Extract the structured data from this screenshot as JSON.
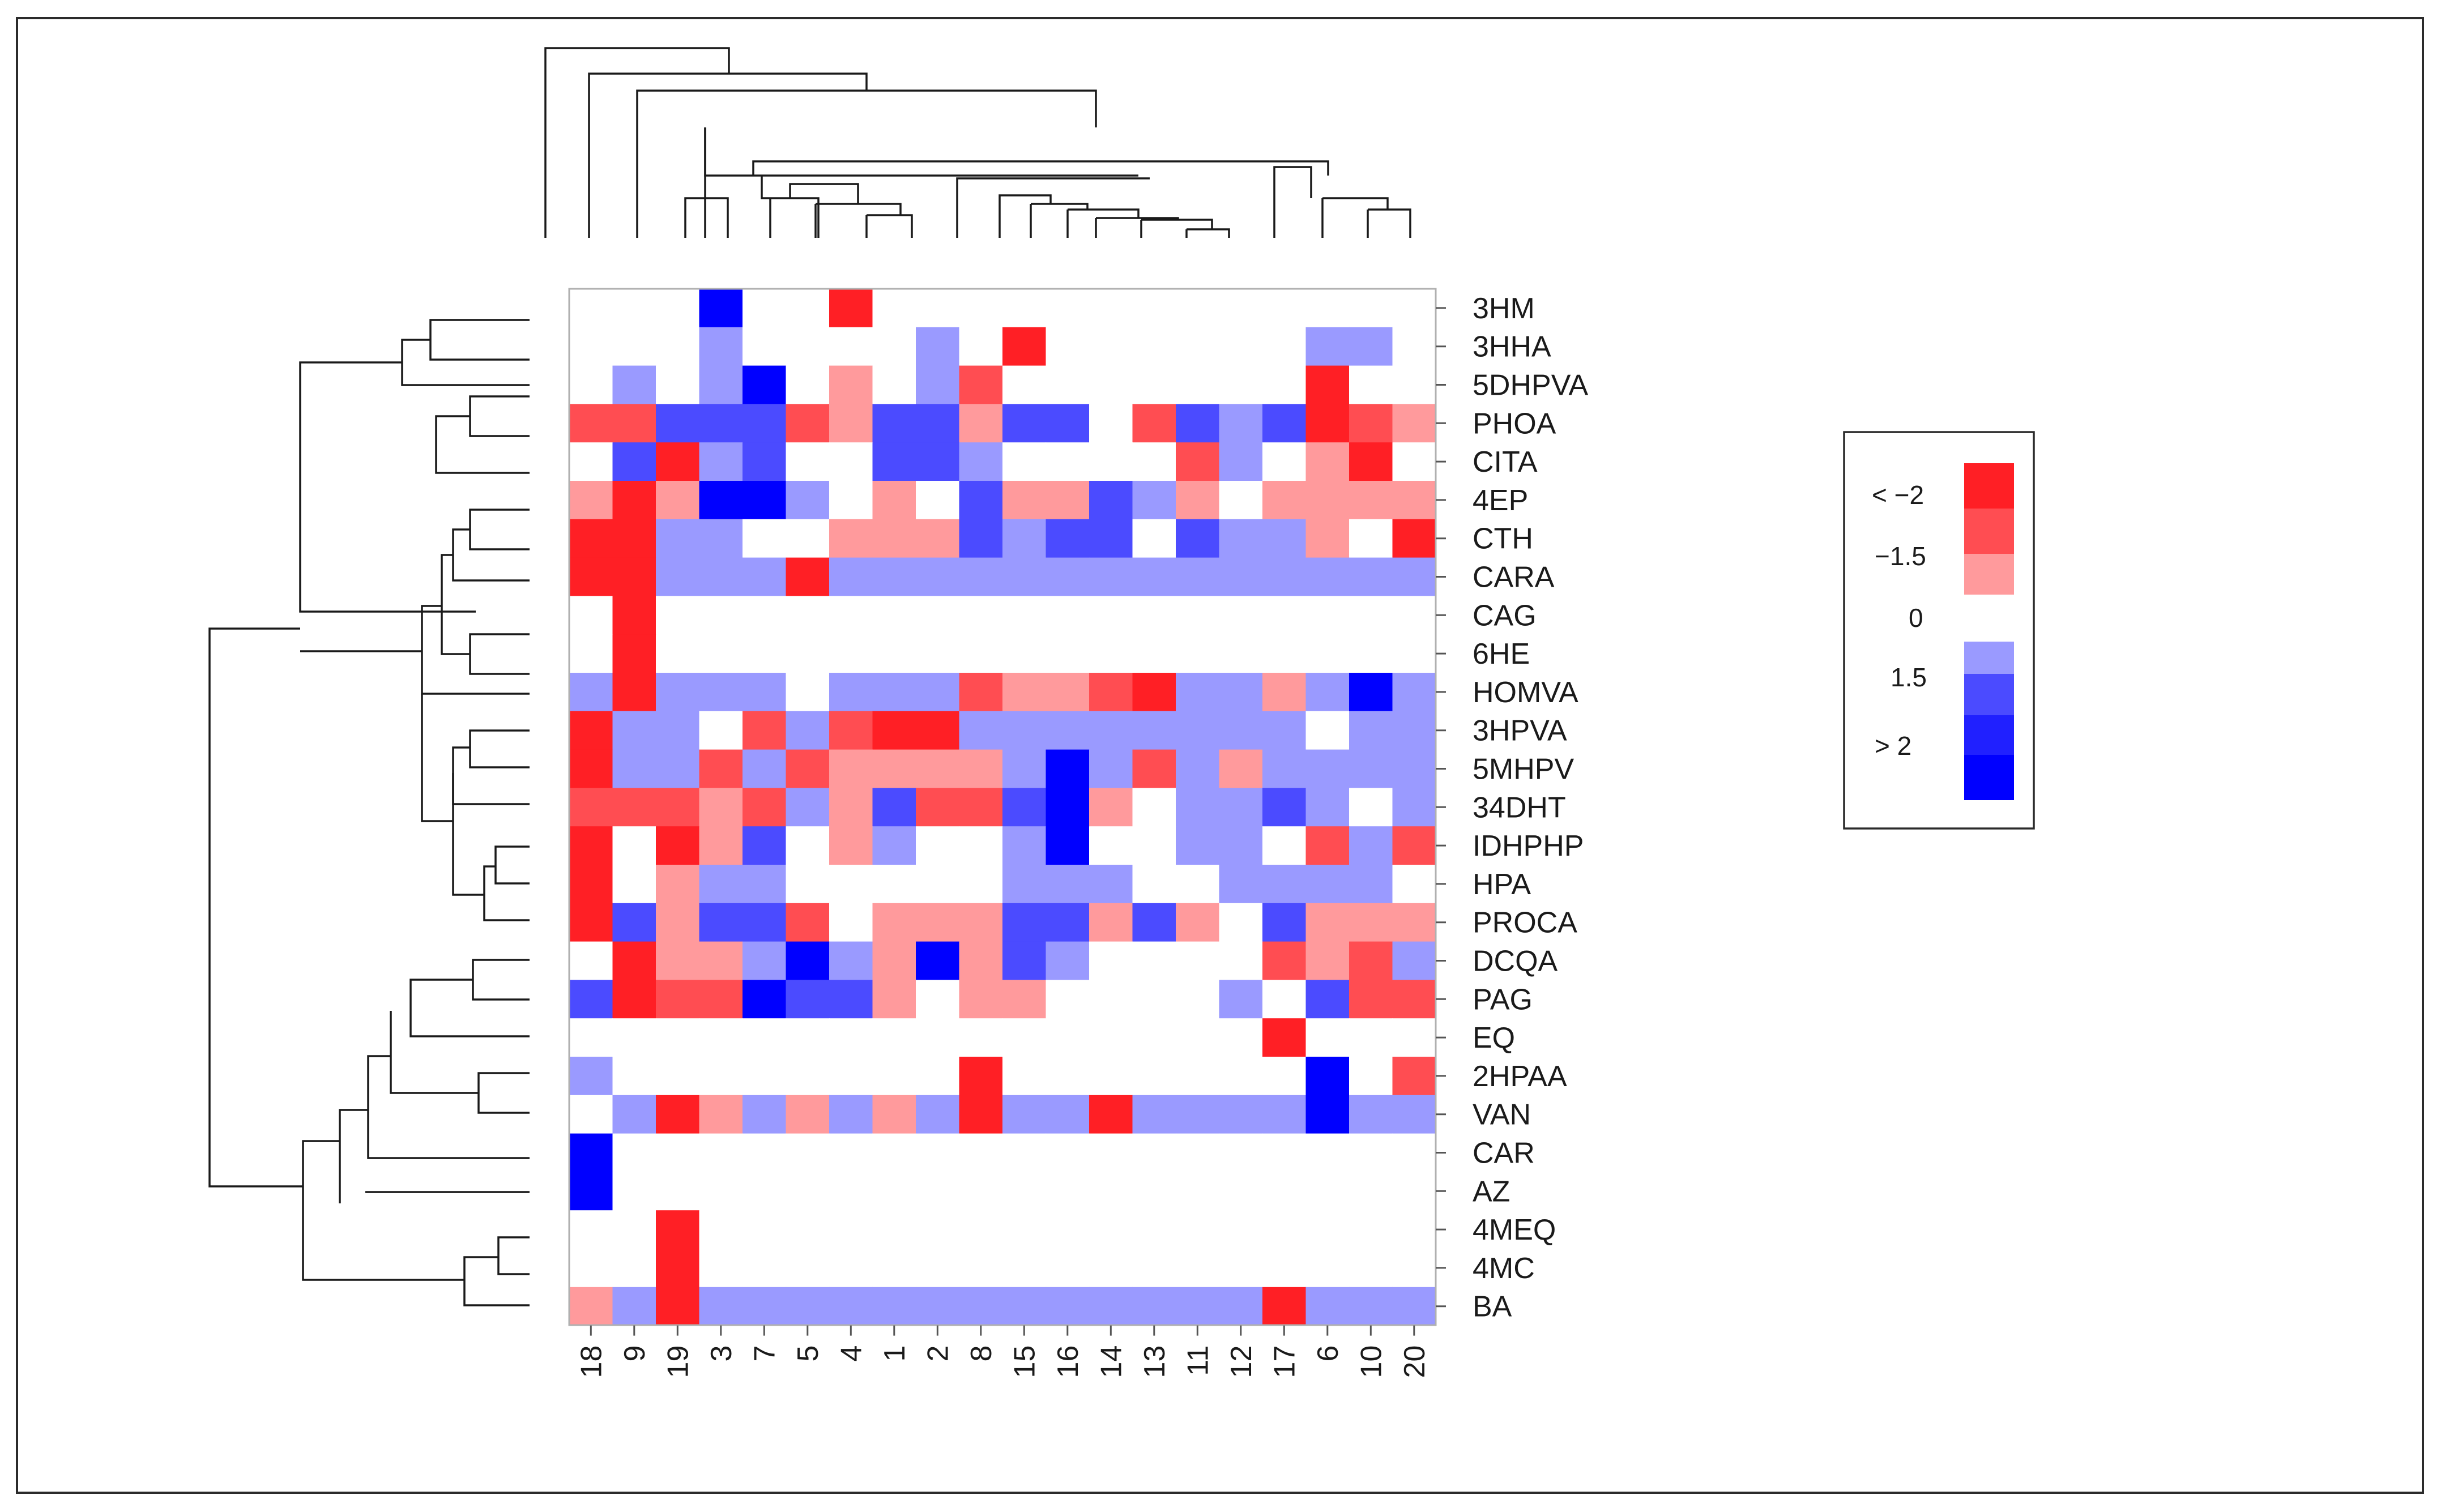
{
  "colors": {
    "neg3": "#ff1f25",
    "neg2": "#ff4d52",
    "neg1": "#ff9a9c",
    "zero": "#ffffff",
    "pos1": "#9a9aff",
    "pos2": "#4b4bff",
    "pos3": "#0000ff"
  },
  "legend": {
    "labels": [
      "< −2",
      "−1.5",
      "0",
      "1.5",
      "> 2"
    ]
  },
  "chart_data": {
    "type": "heatmap",
    "title": "",
    "columns": [
      "18",
      "9",
      "19",
      "3",
      "7",
      "5",
      "4",
      "1",
      "2",
      "8",
      "15",
      "16",
      "14",
      "13",
      "11",
      "12",
      "17",
      "6",
      "10",
      "20"
    ],
    "rows": [
      "3HM",
      "3HHA",
      "5DHPVA",
      "PHOA",
      "CITA",
      "4EP",
      "CTH",
      "CARA",
      "CAG",
      "6HE",
      "HOMVA",
      "3HPVA",
      "5MHPV",
      "34DHT",
      "IDHPHP",
      "HPA",
      "PROCA",
      "DCQA",
      "PAG",
      "EQ",
      "2HPAA",
      "VAN",
      "CAR",
      "AZ",
      "4MEQ",
      "4MC",
      "BA"
    ],
    "value_scale": "levels -3..3 (-3 = < -2, -2 = approx -1.75, -1 = -1.5, 0 = 0, 1 = 1.5, 2 = approx 1.75, 3 = > 2)",
    "values": [
      [
        0,
        0,
        0,
        3,
        0,
        0,
        -3,
        0,
        0,
        0,
        0,
        0,
        0,
        0,
        0,
        0,
        0,
        0,
        0,
        0
      ],
      [
        0,
        0,
        0,
        1,
        0,
        0,
        0,
        0,
        1,
        0,
        -3,
        0,
        0,
        0,
        0,
        0,
        0,
        1,
        1,
        0
      ],
      [
        0,
        1,
        0,
        1,
        3,
        0,
        -1,
        0,
        1,
        -2,
        0,
        0,
        0,
        0,
        0,
        0,
        0,
        -3,
        0,
        0
      ],
      [
        -2,
        -2,
        2,
        2,
        2,
        -2,
        -1,
        2,
        2,
        -1,
        2,
        2,
        0,
        -2,
        2,
        1,
        2,
        -3,
        -2,
        -1
      ],
      [
        0,
        2,
        -3,
        1,
        2,
        0,
        0,
        2,
        2,
        1,
        0,
        0,
        0,
        0,
        -2,
        1,
        0,
        -1,
        -3,
        0
      ],
      [
        -1,
        -3,
        -1,
        3,
        3,
        1,
        0,
        -1,
        0,
        2,
        -1,
        -1,
        2,
        1,
        -1,
        0,
        -1,
        -1,
        -1,
        -1
      ],
      [
        -3,
        -3,
        1,
        1,
        0,
        0,
        -1,
        -1,
        -1,
        2,
        1,
        2,
        2,
        0,
        2,
        1,
        1,
        -1,
        0,
        -3
      ],
      [
        -3,
        -3,
        1,
        1,
        1,
        -3,
        1,
        1,
        1,
        1,
        1,
        1,
        1,
        1,
        1,
        1,
        1,
        1,
        1,
        1
      ],
      [
        0,
        -3,
        0,
        0,
        0,
        0,
        0,
        0,
        0,
        0,
        0,
        0,
        0,
        0,
        0,
        0,
        0,
        0,
        0,
        0
      ],
      [
        0,
        -3,
        0,
        0,
        0,
        0,
        0,
        0,
        0,
        0,
        0,
        0,
        0,
        0,
        0,
        0,
        0,
        0,
        0,
        0
      ],
      [
        1,
        -3,
        1,
        1,
        1,
        0,
        1,
        1,
        1,
        -2,
        -1,
        -1,
        -2,
        -3,
        1,
        1,
        -1,
        1,
        3,
        1
      ],
      [
        -3,
        1,
        1,
        0,
        -2,
        1,
        -2,
        -3,
        -3,
        1,
        1,
        1,
        1,
        1,
        1,
        1,
        1,
        0,
        1,
        1
      ],
      [
        -3,
        1,
        1,
        -2,
        1,
        -2,
        -1,
        -1,
        -1,
        -1,
        1,
        3,
        1,
        -2,
        1,
        -1,
        1,
        1,
        1,
        1
      ],
      [
        -2,
        -2,
        -2,
        -1,
        -2,
        1,
        -1,
        2,
        -2,
        -2,
        2,
        3,
        -1,
        0,
        1,
        1,
        2,
        1,
        0,
        1
      ],
      [
        -3,
        0,
        -3,
        -1,
        2,
        0,
        -1,
        1,
        0,
        0,
        1,
        3,
        0,
        0,
        1,
        1,
        0,
        -2,
        1,
        -2
      ],
      [
        -3,
        0,
        -1,
        1,
        1,
        0,
        0,
        0,
        0,
        0,
        1,
        1,
        1,
        0,
        0,
        1,
        1,
        1,
        1,
        0
      ],
      [
        -3,
        2,
        -1,
        2,
        2,
        -2,
        0,
        -1,
        -1,
        -1,
        2,
        2,
        -1,
        2,
        -1,
        0,
        2,
        -1,
        -1,
        -1
      ],
      [
        0,
        -3,
        -1,
        -1,
        1,
        3,
        1,
        -1,
        3,
        -1,
        2,
        1,
        0,
        0,
        0,
        0,
        -2,
        -1,
        -2,
        1
      ],
      [
        2,
        -3,
        -2,
        -2,
        3,
        2,
        2,
        -1,
        0,
        -1,
        -1,
        0,
        0,
        0,
        0,
        1,
        0,
        2,
        -2,
        -2
      ],
      [
        0,
        0,
        0,
        0,
        0,
        0,
        0,
        0,
        0,
        0,
        0,
        0,
        0,
        0,
        0,
        0,
        -3,
        0,
        0,
        0
      ],
      [
        1,
        0,
        0,
        0,
        0,
        0,
        0,
        0,
        0,
        -3,
        0,
        0,
        0,
        0,
        0,
        0,
        0,
        3,
        0,
        -2
      ],
      [
        0,
        1,
        -3,
        -1,
        1,
        -1,
        1,
        -1,
        1,
        -3,
        1,
        1,
        -3,
        1,
        1,
        1,
        1,
        3,
        1,
        1
      ],
      [
        3,
        0,
        0,
        0,
        0,
        0,
        0,
        0,
        0,
        0,
        0,
        0,
        0,
        0,
        0,
        0,
        0,
        0,
        0,
        0
      ],
      [
        3,
        0,
        0,
        0,
        0,
        0,
        0,
        0,
        0,
        0,
        0,
        0,
        0,
        0,
        0,
        0,
        0,
        0,
        0,
        0
      ],
      [
        0,
        0,
        -3,
        0,
        0,
        0,
        0,
        0,
        0,
        0,
        0,
        0,
        0,
        0,
        0,
        0,
        0,
        0,
        0,
        0
      ],
      [
        0,
        0,
        -3,
        0,
        0,
        0,
        0,
        0,
        0,
        0,
        0,
        0,
        0,
        0,
        0,
        0,
        0,
        0,
        0,
        0
      ],
      [
        -1,
        1,
        -3,
        1,
        1,
        1,
        1,
        1,
        1,
        1,
        1,
        1,
        1,
        1,
        1,
        1,
        -3,
        1,
        1,
        1
      ]
    ]
  }
}
